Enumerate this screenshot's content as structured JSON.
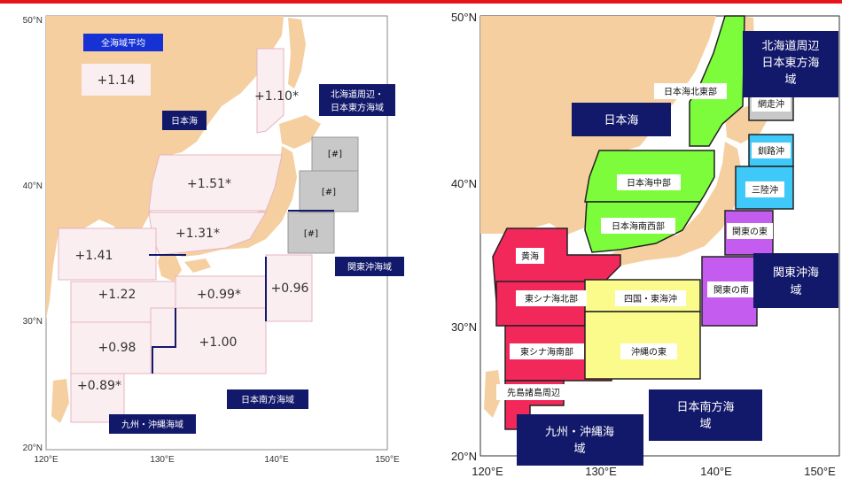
{
  "colors": {
    "land": "#f5cfa0",
    "sea_region_left": "#fbeef0",
    "grey_region": "#c8c8c8",
    "navy_label": "#13196a",
    "blue_label": "#1632d4",
    "green": "#7dfc3c",
    "red": "#f2285a",
    "yellow": "#fbfb8c",
    "purple": "#c45cf0",
    "cyan": "#3ec9f8",
    "light_purple": "#d8b6f4",
    "top_bar": "#e8141b"
  },
  "left_map": {
    "lat_ticks": [
      "50°N",
      "40°N",
      "30°N",
      "20°N"
    ],
    "lon_ticks": [
      "120°E",
      "130°E",
      "140°E",
      "150°E"
    ],
    "all_sea_label": "全海域平均",
    "all_sea_value": "+1.14",
    "japan_sea_label": "日本海",
    "hokkaido_label_l1": "北海道周辺・",
    "hokkaido_label_l2": "日本東方海域",
    "kanto_label": "関東沖海域",
    "south_label": "日本南方海域",
    "kyushu_label": "九州・沖縄海域",
    "values": {
      "japan_sea_north": "+1.10*",
      "japan_sea_central": "+1.51*",
      "japan_sea_southwest": "+1.31*",
      "yellow_sea": "+1.41",
      "east_china_north": "+1.22",
      "shikoku_tokai": "+0.99*",
      "kanto_east": "+0.96",
      "east_china_south": "+0.98",
      "okinawa_east": "+1.00",
      "sakishima": "+0.89*",
      "hokkaido_a": "[#]",
      "hokkaido_b": "[#]",
      "sanriku": "[#]"
    }
  },
  "right_map": {
    "lat_ticks": [
      "50°N",
      "40°N",
      "30°N",
      "20°N"
    ],
    "lon_ticks": [
      "120°E",
      "130°E",
      "140°E",
      "150°E"
    ],
    "japan_sea_label": "日本海",
    "hokkaido_label_l1": "北海道周辺",
    "hokkaido_label_l2": "日本東方海",
    "hokkaido_label_l3": "域",
    "kanto_label_l1": "関東沖海",
    "kanto_label_l2": "域",
    "south_label_l1": "日本南方海",
    "south_label_l2": "域",
    "kyushu_label_l1": "九州・沖縄海",
    "kyushu_label_l2": "域",
    "regions": {
      "japan_sea_northeast": "日本海北東部",
      "japan_sea_central": "日本海中部",
      "japan_sea_southwest": "日本海南西部",
      "abashiri": "網走沖",
      "kushiro": "釧路沖",
      "sanriku": "三陸沖",
      "kanto_east": "関東の東",
      "kanto_south": "関東の南",
      "yellow_sea": "黄海",
      "east_china_north": "東シナ海北部",
      "shikoku_tokai": "四国・東海沖",
      "east_china_south": "東シナ海南部",
      "okinawa_east": "沖縄の東",
      "sakishima": "先島諸島周辺"
    }
  }
}
